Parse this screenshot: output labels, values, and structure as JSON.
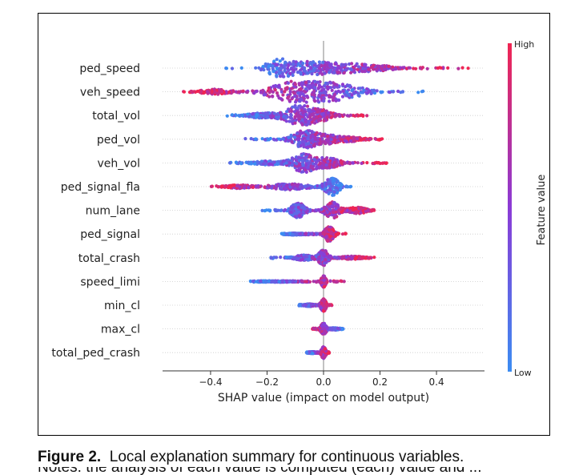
{
  "chart_data": {
    "type": "scatter",
    "subtype": "beeswarm",
    "xlabel": "SHAP value (impact on model output)",
    "xlim": [
      -0.57,
      0.57
    ],
    "xticks": [
      -0.4,
      -0.2,
      0.0,
      0.2,
      0.4
    ],
    "xtick_labels": [
      "−0.4",
      "−0.2",
      "0.0",
      "0.2",
      "0.4"
    ],
    "colorbar": {
      "label": "Feature value",
      "high": "High",
      "low": "Low",
      "low_color": "#3b8cf2",
      "mid_color": "#8b3bd6",
      "high_color": "#f02552"
    },
    "features": [
      {
        "name": "ped_speed",
        "min": -0.36,
        "max": 0.52,
        "width": 0.9,
        "lowSide": "left",
        "peaks": [
          [
            -0.15,
            1.0,
            0.06
          ],
          [
            -0.04,
            0.6,
            0.06
          ],
          [
            0.06,
            0.45,
            0.08
          ],
          [
            0.18,
            0.28,
            0.1
          ]
        ]
      },
      {
        "name": "veh_speed",
        "min": -0.52,
        "max": 0.39,
        "width": 1.0,
        "lowSide": "right",
        "peaks": [
          [
            -0.12,
            0.9,
            0.09
          ],
          [
            -0.03,
            1.0,
            0.08
          ],
          [
            0.08,
            0.55,
            0.09
          ],
          [
            -0.38,
            0.25,
            0.07
          ]
        ]
      },
      {
        "name": "total_vol",
        "min": -0.35,
        "max": 0.16,
        "width": 0.95,
        "lowSide": "left",
        "peaks": [
          [
            -0.09,
            1.0,
            0.06
          ],
          [
            -0.01,
            0.5,
            0.05
          ],
          [
            -0.22,
            0.25,
            0.06
          ]
        ]
      },
      {
        "name": "ped_vol",
        "min": -0.28,
        "max": 0.21,
        "width": 0.85,
        "lowSide": "left",
        "peaks": [
          [
            -0.07,
            1.0,
            0.05
          ],
          [
            0.01,
            0.5,
            0.05
          ],
          [
            0.1,
            0.25,
            0.05
          ]
        ]
      },
      {
        "name": "veh_vol",
        "min": -0.34,
        "max": 0.24,
        "width": 0.9,
        "lowSide": "left",
        "peaks": [
          [
            -0.07,
            1.0,
            0.05
          ],
          [
            0.02,
            0.5,
            0.05
          ],
          [
            -0.2,
            0.2,
            0.06
          ]
        ]
      },
      {
        "name": "ped_signal_fla",
        "min": -0.4,
        "max": 0.11,
        "width": 0.85,
        "lowSide": "right",
        "peaks": [
          [
            0.03,
            1.0,
            0.03
          ],
          [
            -0.12,
            0.35,
            0.08
          ],
          [
            -0.3,
            0.2,
            0.05
          ]
        ]
      },
      {
        "name": "num_lane",
        "min": -0.22,
        "max": 0.18,
        "width": 0.8,
        "lowSide": "left",
        "peaks": [
          [
            -0.09,
            0.9,
            0.03
          ],
          [
            0.03,
            1.0,
            0.03
          ],
          [
            0.12,
            0.4,
            0.04
          ]
        ]
      },
      {
        "name": "ped_signal",
        "min": -0.15,
        "max": 0.08,
        "width": 0.75,
        "lowSide": "left",
        "peaks": [
          [
            0.02,
            1.0,
            0.02
          ],
          [
            -0.1,
            0.12,
            0.04
          ]
        ]
      },
      {
        "name": "total_crash",
        "min": -0.19,
        "max": 0.18,
        "width": 0.75,
        "lowSide": "left",
        "peaks": [
          [
            0.0,
            1.0,
            0.02
          ],
          [
            -0.07,
            0.35,
            0.04
          ],
          [
            0.1,
            0.2,
            0.05
          ]
        ]
      },
      {
        "name": "speed_limi",
        "min": -0.26,
        "max": 0.08,
        "width": 0.55,
        "lowSide": "left",
        "peaks": [
          [
            0.0,
            1.0,
            0.01
          ],
          [
            -0.15,
            0.08,
            0.06
          ]
        ]
      },
      {
        "name": "min_cl",
        "min": -0.09,
        "max": 0.03,
        "width": 0.6,
        "lowSide": "left",
        "peaks": [
          [
            0.0,
            1.0,
            0.012
          ],
          [
            -0.05,
            0.2,
            0.02
          ]
        ]
      },
      {
        "name": "max_cl",
        "min": -0.04,
        "max": 0.07,
        "width": 0.55,
        "lowSide": "right",
        "peaks": [
          [
            0.0,
            1.0,
            0.012
          ],
          [
            0.04,
            0.2,
            0.02
          ]
        ]
      },
      {
        "name": "total_ped_crash",
        "min": -0.06,
        "max": 0.02,
        "width": 0.55,
        "lowSide": "left",
        "peaks": [
          [
            0.0,
            1.0,
            0.01
          ],
          [
            -0.04,
            0.15,
            0.015
          ]
        ]
      }
    ]
  },
  "caption": {
    "label": "Figure 2.",
    "text": "Local explanation summary for continuous variables."
  },
  "caption_cut": "Notes: the analysis of each value is computed (each) value and ..."
}
